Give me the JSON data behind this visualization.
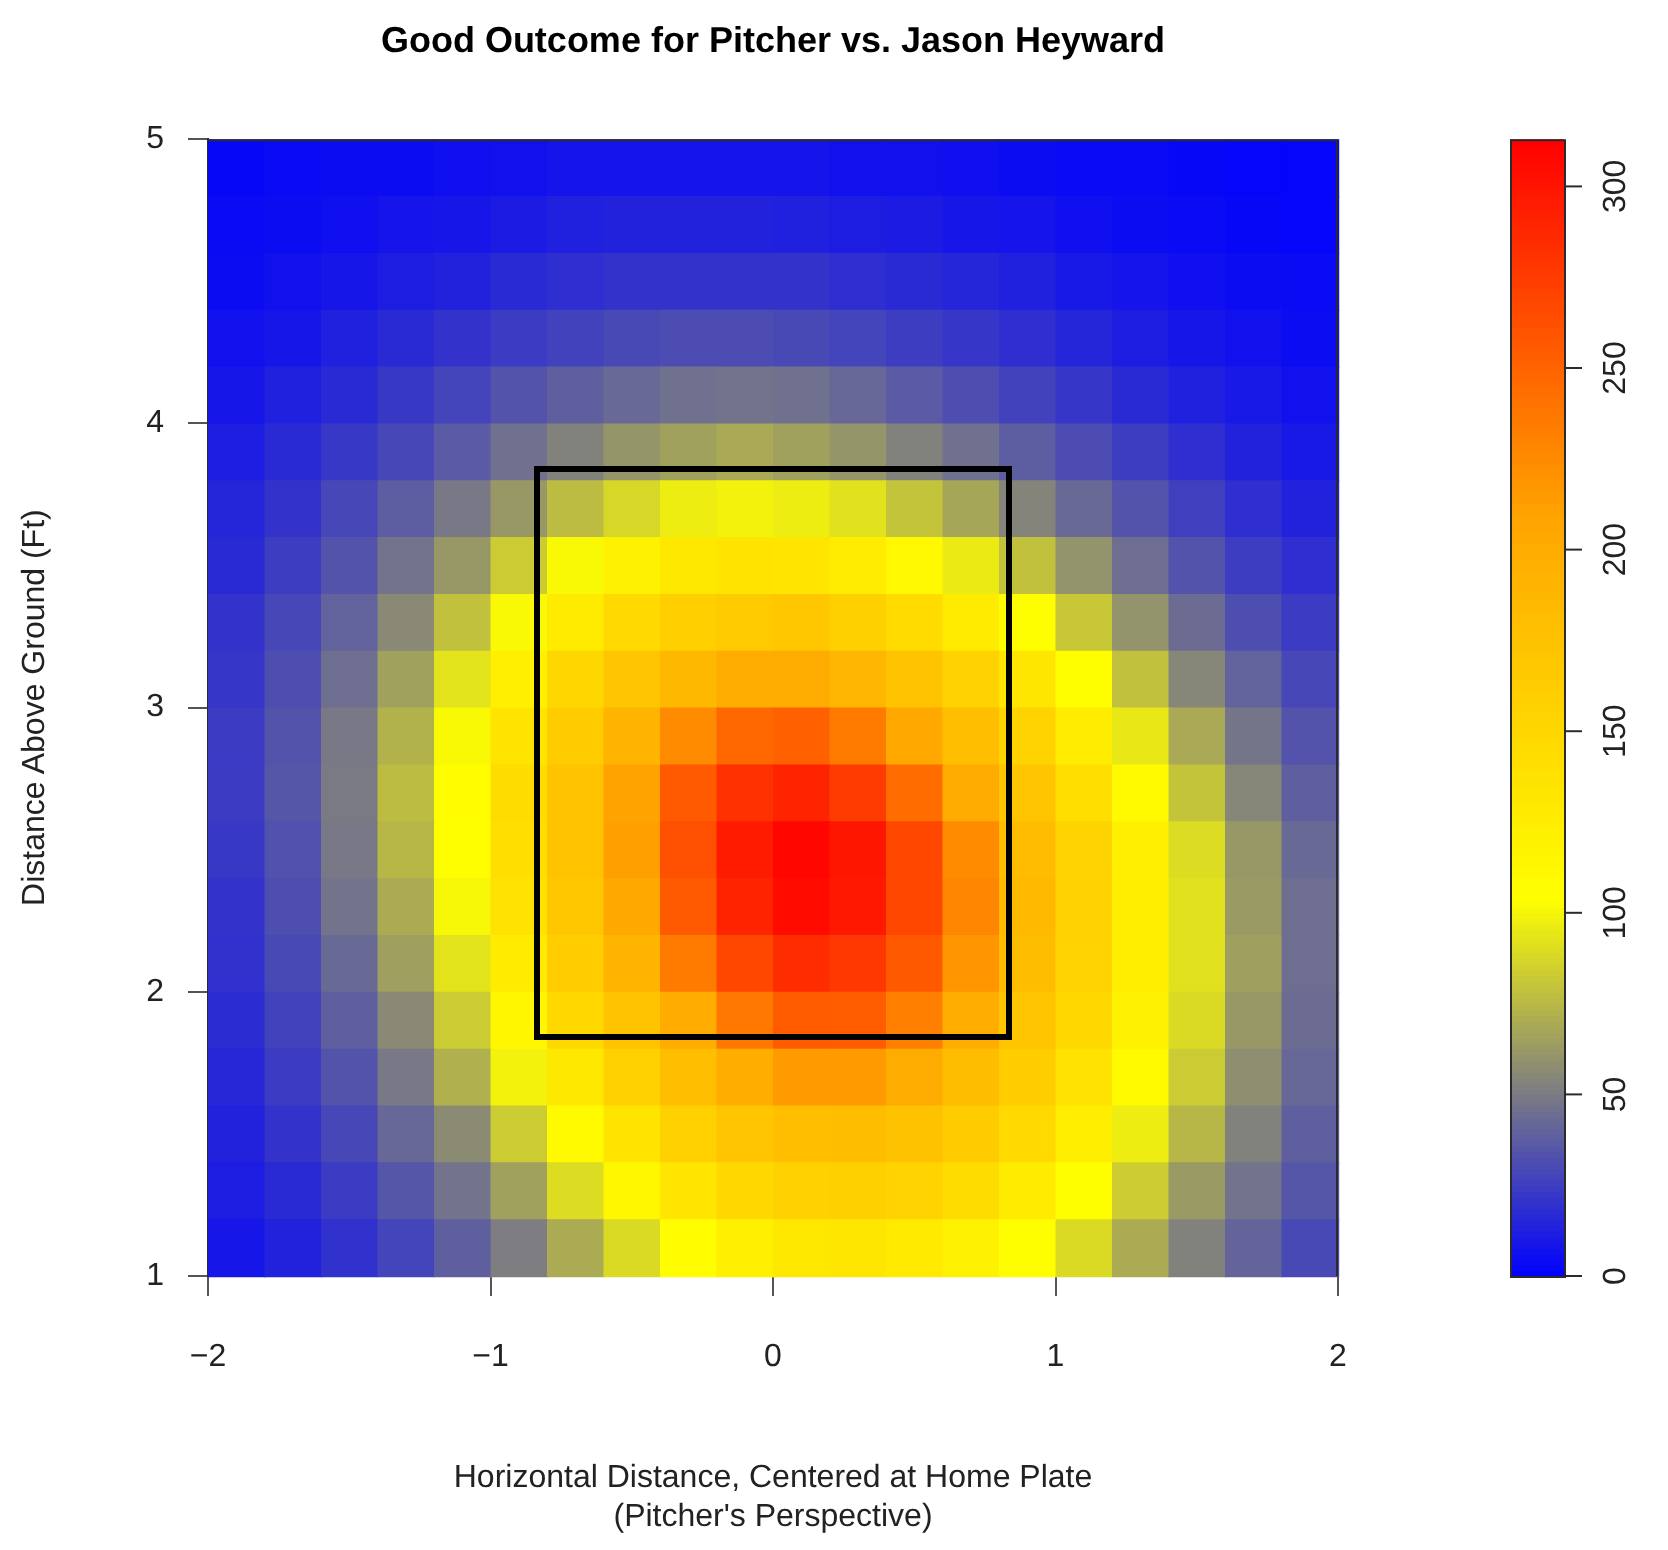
{
  "chart_data": {
    "type": "heatmap",
    "title": "Good Outcome for Pitcher vs. Jason Heyward",
    "xlabel": "Horizontal Distance, Centered at Home Plate\n(Pitcher's Perspective)",
    "ylabel": "Distance Above Ground (Ft)",
    "x": [
      -1.9,
      -1.7,
      -1.5,
      -1.3,
      -1.1,
      -0.9,
      -0.7,
      -0.5,
      -0.3,
      -0.1,
      0.1,
      0.3,
      0.5,
      0.7,
      0.9,
      1.1,
      1.3,
      1.5,
      1.7,
      1.9
    ],
    "cells": [
      [
        3,
        4,
        5,
        5,
        6,
        7,
        8,
        8,
        8,
        8,
        8,
        7,
        7,
        6,
        5,
        4,
        4,
        3,
        2,
        2
      ],
      [
        4,
        5,
        6,
        8,
        9,
        11,
        13,
        14,
        14,
        14,
        13,
        12,
        11,
        9,
        8,
        6,
        5,
        4,
        3,
        2
      ],
      [
        5,
        7,
        9,
        12,
        14,
        17,
        19,
        21,
        21,
        21,
        21,
        19,
        17,
        15,
        13,
        10,
        8,
        6,
        5,
        4
      ],
      [
        7,
        9,
        13,
        17,
        21,
        24,
        27,
        30,
        31,
        31,
        30,
        28,
        25,
        22,
        19,
        15,
        12,
        9,
        7,
        5
      ],
      [
        9,
        13,
        17,
        23,
        28,
        34,
        39,
        43,
        46,
        47,
        46,
        42,
        37,
        32,
        27,
        22,
        17,
        13,
        10,
        7
      ],
      [
        12,
        17,
        23,
        29,
        37,
        46,
        53,
        61,
        66,
        69,
        66,
        61,
        53,
        46,
        38,
        31,
        25,
        19,
        14,
        10
      ],
      [
        15,
        21,
        29,
        38,
        49,
        62,
        77,
        88,
        97,
        99,
        97,
        92,
        80,
        68,
        54,
        43,
        34,
        26,
        19,
        14
      ],
      [
        17,
        25,
        34,
        47,
        62,
        83,
        102,
        119,
        131,
        136,
        135,
        126,
        112,
        96,
        79,
        60,
        45,
        34,
        25,
        19
      ],
      [
        21,
        29,
        40,
        56,
        79,
        102,
        127,
        148,
        160,
        165,
        169,
        159,
        146,
        127,
        104,
        82,
        60,
        44,
        32,
        24
      ],
      [
        22,
        32,
        45,
        66,
        93,
        122,
        151,
        171,
        187,
        200,
        200,
        189,
        174,
        156,
        133,
        104,
        79,
        55,
        40,
        29
      ],
      [
        24,
        34,
        49,
        73,
        102,
        136,
        164,
        191,
        225,
        248,
        252,
        235,
        205,
        178,
        155,
        126,
        95,
        69,
        48,
        34
      ],
      [
        24,
        35,
        50,
        77,
        107,
        145,
        174,
        210,
        256,
        282,
        290,
        275,
        245,
        202,
        171,
        143,
        110,
        80,
        55,
        39
      ],
      [
        23,
        33,
        49,
        75,
        105,
        143,
        174,
        212,
        263,
        296,
        309,
        299,
        268,
        225,
        182,
        155,
        122,
        90,
        62,
        43
      ],
      [
        21,
        32,
        47,
        70,
        101,
        138,
        169,
        205,
        256,
        290,
        306,
        297,
        268,
        228,
        184,
        156,
        124,
        92,
        63,
        45
      ],
      [
        20,
        30,
        43,
        65,
        93,
        127,
        162,
        191,
        235,
        268,
        285,
        278,
        257,
        218,
        181,
        155,
        124,
        92,
        65,
        45
      ],
      [
        18,
        27,
        39,
        56,
        83,
        115,
        149,
        174,
        202,
        237,
        255,
        254,
        232,
        199,
        172,
        149,
        119,
        89,
        62,
        44
      ],
      [
        16,
        24,
        34,
        49,
        72,
        99,
        131,
        158,
        179,
        198,
        215,
        215,
        200,
        181,
        162,
        138,
        110,
        83,
        58,
        42
      ],
      [
        14,
        21,
        29,
        42,
        57,
        83,
        110,
        136,
        158,
        172,
        180,
        181,
        175,
        163,
        148,
        124,
        97,
        75,
        53,
        39
      ],
      [
        12,
        17,
        24,
        35,
        47,
        66,
        90,
        114,
        135,
        150,
        158,
        159,
        155,
        145,
        127,
        105,
        84,
        63,
        47,
        35
      ],
      [
        9,
        14,
        20,
        28,
        39,
        51,
        70,
        89,
        107,
        122,
        131,
        133,
        129,
        119,
        105,
        89,
        70,
        53,
        41,
        30
      ]
    ],
    "xlim": [
      -2,
      2
    ],
    "ylim": [
      1,
      5
    ],
    "xticks": [
      -2,
      -1,
      0,
      1,
      2
    ],
    "yticks": [
      1,
      2,
      3,
      4,
      5
    ],
    "clim": [
      0,
      313
    ],
    "cticks": [
      0,
      50,
      100,
      150,
      200,
      250,
      300
    ]
  }
}
